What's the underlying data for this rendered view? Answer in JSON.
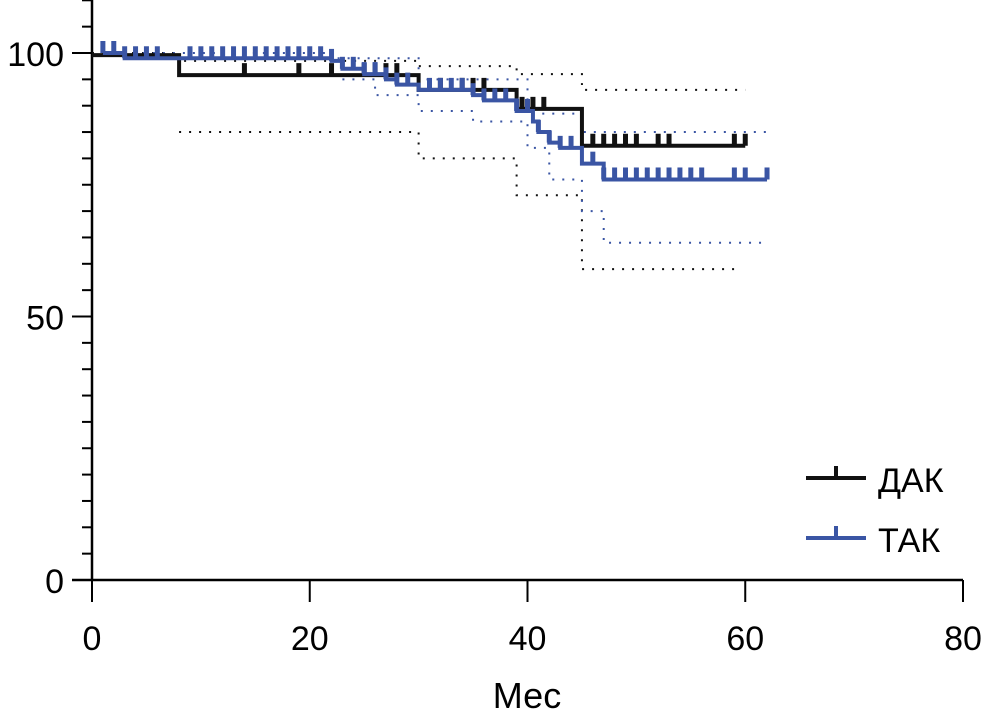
{
  "chart_data": {
    "type": "line",
    "subtype": "kaplan-meier",
    "title": "",
    "xlabel": "Мес",
    "ylabel": "",
    "xlim": [
      0,
      80
    ],
    "ylim": [
      0,
      100
    ],
    "x_ticks": [
      0,
      20,
      40,
      60,
      80
    ],
    "x_tick_labels": [
      "0",
      "20",
      "40",
      "60",
      "80"
    ],
    "y_ticks": [
      0,
      50,
      100
    ],
    "y_tick_labels": [
      "0",
      "50",
      "100"
    ],
    "y_minor_step": 5,
    "grid": false,
    "legend_position": "bottom-right",
    "series": [
      {
        "name": "ДАК",
        "color": "#111111",
        "steps": [
          [
            0,
            99.6
          ],
          [
            8,
            95.8
          ],
          [
            30,
            93.0
          ],
          [
            39,
            89.4
          ],
          [
            45,
            82.4
          ],
          [
            60,
            82.4
          ]
        ],
        "censored": [
          14,
          19,
          22,
          25,
          26,
          27,
          28,
          32,
          34,
          35,
          36,
          39.5,
          40.5,
          41.5,
          46,
          47,
          48,
          49,
          50,
          52,
          53,
          59,
          60
        ],
        "ci_upper": [
          [
            0,
            100
          ],
          [
            8,
            98.5
          ],
          [
            30,
            97.5
          ],
          [
            39,
            96
          ],
          [
            45,
            93
          ],
          [
            60,
            93
          ]
        ],
        "ci_lower": [
          [
            8,
            85
          ],
          [
            30,
            80
          ],
          [
            39,
            73
          ],
          [
            45,
            59
          ],
          [
            59,
            59
          ]
        ]
      },
      {
        "name": "ТАК",
        "color": "#3a55a4",
        "steps": [
          [
            1,
            100
          ],
          [
            3,
            99
          ],
          [
            22,
            98.5
          ],
          [
            23,
            97
          ],
          [
            25,
            96
          ],
          [
            27,
            95
          ],
          [
            28,
            94
          ],
          [
            30,
            93
          ],
          [
            35,
            92
          ],
          [
            36,
            91
          ],
          [
            39,
            89
          ],
          [
            40.5,
            87
          ],
          [
            41,
            85
          ],
          [
            42,
            83
          ],
          [
            43,
            82
          ],
          [
            45,
            79
          ],
          [
            47,
            76
          ],
          [
            62,
            76
          ]
        ],
        "censored": [
          1,
          2,
          3,
          4,
          5,
          6,
          9,
          10,
          11,
          12,
          13,
          14,
          15,
          16,
          17,
          18,
          19,
          20,
          21,
          22,
          23,
          24,
          25,
          26,
          27,
          28,
          29,
          31,
          32,
          33,
          34,
          35,
          36,
          37,
          38,
          39,
          40,
          41,
          42,
          43,
          44,
          46,
          47,
          48,
          49,
          50,
          51,
          52,
          53,
          54,
          55,
          56,
          59,
          60,
          62
        ],
        "ci_upper": [
          [
            1,
            100
          ],
          [
            22,
            99
          ],
          [
            30,
            95
          ],
          [
            40,
            88.5
          ],
          [
            45,
            85
          ],
          [
            62,
            85
          ]
        ],
        "ci_lower": [
          [
            23,
            95
          ],
          [
            26,
            92
          ],
          [
            30,
            89
          ],
          [
            35,
            87
          ],
          [
            40,
            82
          ],
          [
            42,
            76
          ],
          [
            45,
            70
          ],
          [
            47,
            64
          ],
          [
            62,
            64
          ]
        ]
      }
    ]
  }
}
